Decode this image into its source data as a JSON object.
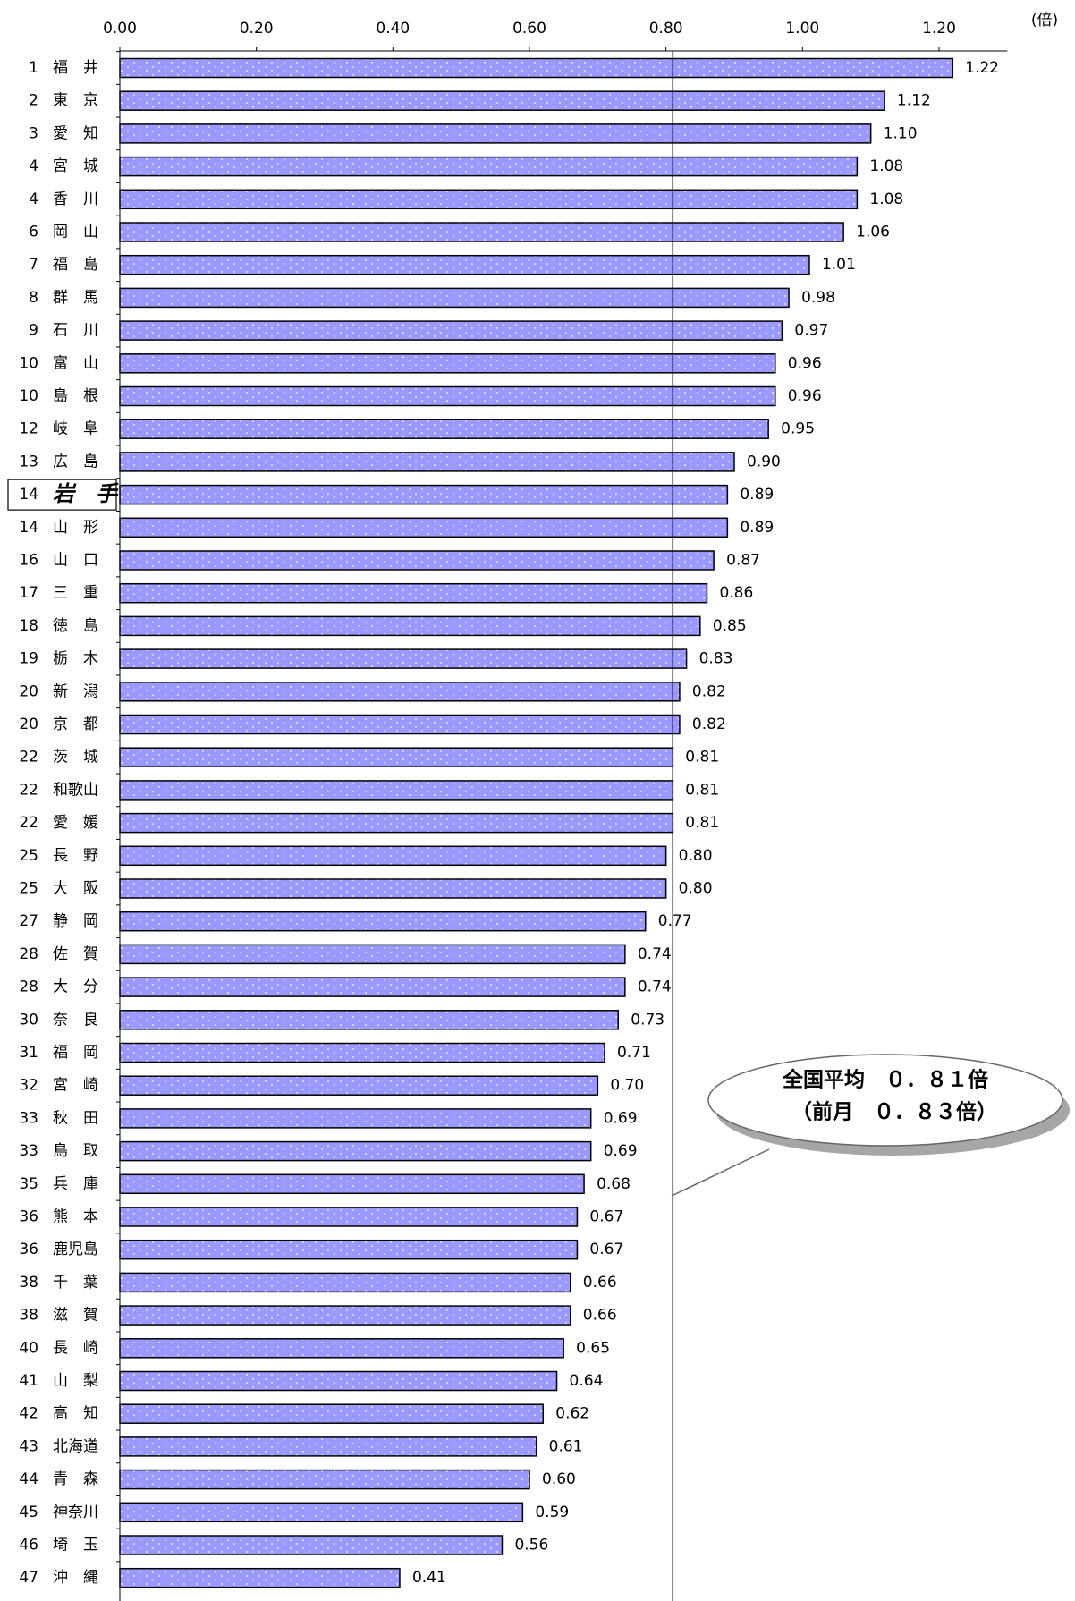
{
  "chart_data": {
    "type": "bar",
    "orientation": "horizontal",
    "unit": "(倍)",
    "ranks": [
      1,
      2,
      3,
      4,
      4,
      6,
      7,
      8,
      9,
      10,
      10,
      12,
      13,
      14,
      14,
      16,
      17,
      18,
      19,
      20,
      20,
      22,
      22,
      22,
      25,
      25,
      27,
      28,
      28,
      30,
      31,
      32,
      33,
      33,
      35,
      36,
      36,
      38,
      38,
      40,
      41,
      42,
      43,
      44,
      45,
      46,
      47
    ],
    "categories": [
      "福　井",
      "東　京",
      "愛　知",
      "宮　城",
      "香　川",
      "岡　山",
      "福　島",
      "群　馬",
      "石　川",
      "富　山",
      "島　根",
      "岐　阜",
      "広　島",
      "岩　手",
      "山　形",
      "山　口",
      "三　重",
      "徳　島",
      "栃　木",
      "新　潟",
      "京　都",
      "茨　城",
      "和歌山",
      "愛　媛",
      "長　野",
      "大　阪",
      "静　岡",
      "佐　賀",
      "大　分",
      "奈　良",
      "福　岡",
      "宮　崎",
      "秋　田",
      "鳥　取",
      "兵　庫",
      "熊　本",
      "鹿児島",
      "千　葉",
      "滋　賀",
      "長　崎",
      "山　梨",
      "高　知",
      "北海道",
      "青　森",
      "神奈川",
      "埼　玉",
      "沖　縄"
    ],
    "values": [
      1.22,
      1.12,
      1.1,
      1.08,
      1.08,
      1.06,
      1.01,
      0.98,
      0.97,
      0.96,
      0.96,
      0.95,
      0.9,
      0.89,
      0.89,
      0.87,
      0.86,
      0.85,
      0.83,
      0.82,
      0.82,
      0.81,
      0.81,
      0.81,
      0.8,
      0.8,
      0.77,
      0.74,
      0.74,
      0.73,
      0.71,
      0.7,
      0.69,
      0.69,
      0.68,
      0.67,
      0.67,
      0.66,
      0.66,
      0.65,
      0.64,
      0.62,
      0.61,
      0.6,
      0.59,
      0.56,
      0.41
    ],
    "value_labels": [
      "1.22",
      "1.12",
      "1.10",
      "1.08",
      "1.08",
      "1.06",
      "1.01",
      "0.98",
      "0.97",
      "0.96",
      "0.96",
      "0.95",
      "0.90",
      "0.89",
      "0.89",
      "0.87",
      "0.86",
      "0.85",
      "0.83",
      "0.82",
      "0.82",
      "0.81",
      "0.81",
      "0.81",
      "0.80",
      "0.80",
      "0.77",
      "0.74",
      "0.74",
      "0.73",
      "0.71",
      "0.70",
      "0.69",
      "0.69",
      "0.68",
      "0.67",
      "0.67",
      "0.66",
      "0.66",
      "0.65",
      "0.64",
      "0.62",
      "0.61",
      "0.60",
      "0.59",
      "0.56",
      "0.41"
    ],
    "color": "#9999ff",
    "highlight_index": 13,
    "xlim": [
      0,
      1.3
    ],
    "xticks": [
      {
        "value": 0,
        "label": "0.00"
      },
      {
        "value": 0.2,
        "label": "0.20"
      },
      {
        "value": 0.4,
        "label": "0.40"
      },
      {
        "value": 0.6,
        "label": "0.60"
      },
      {
        "value": 0.8,
        "label": "0.80"
      },
      {
        "value": 1.0,
        "label": "1.00"
      },
      {
        "value": 1.2,
        "label": "1.20"
      }
    ],
    "reference_line": 0.81,
    "annotation": [
      "全国平均　０．８１倍",
      "（前月　０．８３倍）"
    ]
  }
}
